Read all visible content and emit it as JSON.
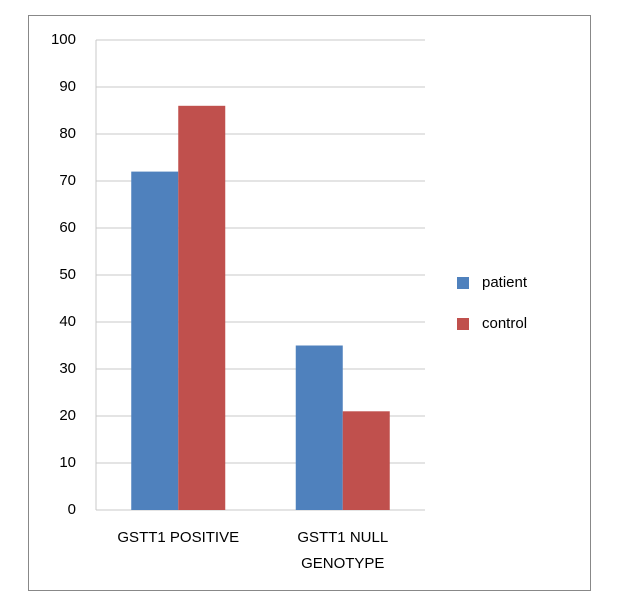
{
  "chart_data": {
    "type": "bar",
    "categories": [
      "GSTT1 POSITIVE",
      "GSTT1 NULL GENOTYPE"
    ],
    "series": [
      {
        "name": "patient",
        "color": "#4f81bd",
        "values": [
          72,
          35
        ]
      },
      {
        "name": "control",
        "color": "#c0504d",
        "values": [
          86,
          21
        ]
      }
    ],
    "ylim": [
      0,
      100
    ],
    "yticks": [
      0,
      10,
      20,
      30,
      40,
      50,
      60,
      70,
      80,
      90,
      100
    ],
    "grid": true,
    "legend": "right"
  }
}
